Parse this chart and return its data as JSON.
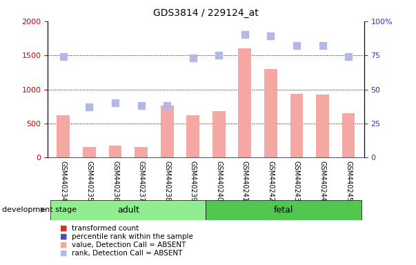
{
  "title": "GDS3814 / 229124_at",
  "samples": [
    "GSM440234",
    "GSM440235",
    "GSM440236",
    "GSM440237",
    "GSM440238",
    "GSM440239",
    "GSM440240",
    "GSM440241",
    "GSM440242",
    "GSM440243",
    "GSM440244",
    "GSM440245"
  ],
  "bar_values": [
    620,
    160,
    180,
    160,
    760,
    620,
    680,
    1600,
    1300,
    940,
    930,
    650
  ],
  "rank_values": [
    74,
    37,
    40,
    38,
    38,
    73,
    75,
    90,
    89,
    82,
    82,
    74
  ],
  "bar_absent": [
    true,
    true,
    true,
    true,
    true,
    true,
    true,
    true,
    true,
    true,
    true,
    true
  ],
  "rank_absent": [
    true,
    true,
    true,
    true,
    true,
    true,
    true,
    true,
    true,
    true,
    true,
    true
  ],
  "bar_color_present": "#d73027",
  "bar_color_absent": "#f4a7a3",
  "rank_color_present": "#3f51b5",
  "rank_color_absent": "#b3b8e8",
  "groups": [
    {
      "label": "adult",
      "start": 0,
      "end": 5,
      "color": "#90ee90"
    },
    {
      "label": "fetal",
      "start": 6,
      "end": 11,
      "color": "#50c850"
    }
  ],
  "ylim_left": [
    0,
    2000
  ],
  "ylim_right": [
    0,
    100
  ],
  "yticks_left": [
    0,
    500,
    1000,
    1500,
    2000
  ],
  "yticks_right": [
    0,
    25,
    50,
    75,
    100
  ],
  "group_label": "development stage",
  "legend_items": [
    {
      "label": "transformed count",
      "color": "#d73027"
    },
    {
      "label": "percentile rank within the sample",
      "color": "#3f51b5"
    },
    {
      "label": "value, Detection Call = ABSENT",
      "color": "#f4a7a3"
    },
    {
      "label": "rank, Detection Call = ABSENT",
      "color": "#b3b8e8"
    }
  ],
  "bar_width": 0.5,
  "rank_marker_size": 7,
  "figsize": [
    6.03,
    3.84
  ],
  "dpi": 100,
  "background_color": "#ffffff",
  "tick_label_color_left": "#cc0000",
  "tick_label_color_right": "#3333cc",
  "xticklabel_fontsize": 7,
  "ytick_fontsize": 8
}
